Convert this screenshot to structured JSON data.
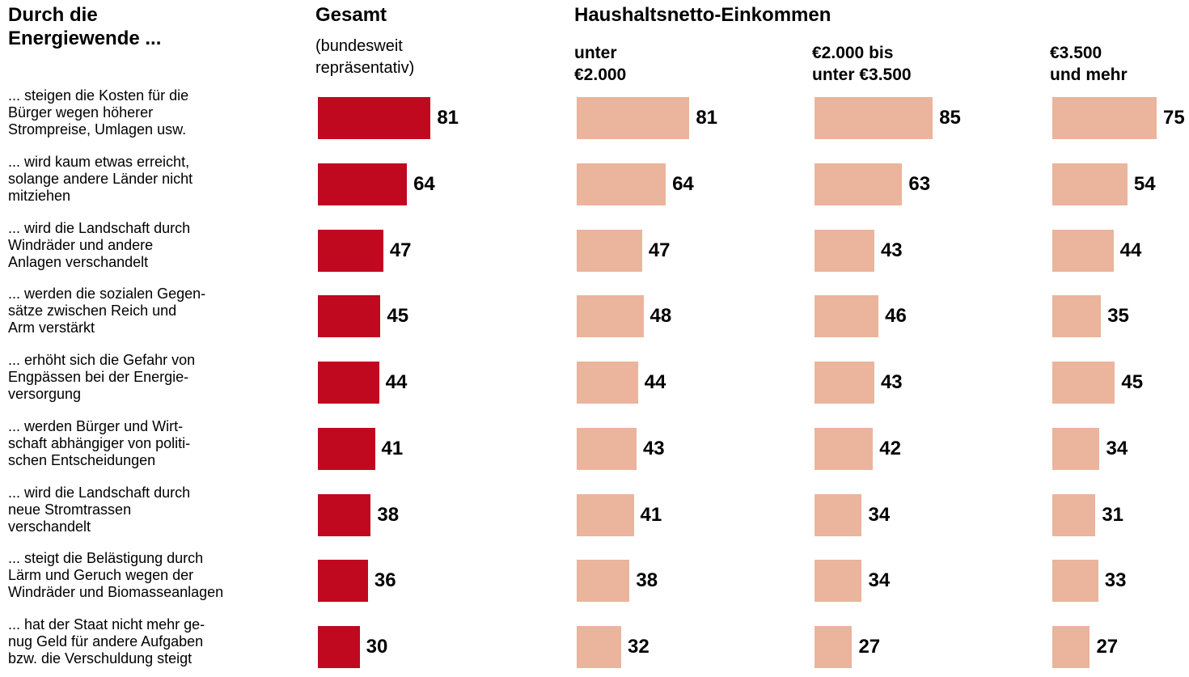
{
  "chart_data": {
    "type": "bar",
    "title": "Durch die\nEnergiewende ...",
    "group_title": "Haushaltsnetto-Einkommen",
    "categories": [
      "... steigen die Kosten für die\nBürger wegen höherer\nStrompreise, Umlagen usw.",
      "... wird kaum etwas erreicht,\nsolange andere Länder nicht\nmitziehen",
      "... wird die Landschaft durch\nWindräder und andere\nAnlagen verschandelt",
      "... werden die sozialen Gegen-\nsätze zwischen Reich und\nArm verstärkt",
      "... erhöht sich die Gefahr von\nEngpässen bei der Energie-\nversorgung",
      "... werden Bürger und Wirt-\nschaft abhängiger von politi-\nschen Entscheidungen",
      "... wird die Landschaft durch\nneue Stromtrassen\nverschandelt",
      "... steigt die Belästigung durch\nLärm und Geruch wegen der\n Windräder und Biomasseanlagen",
      "... hat der Staat nicht mehr ge-\nnug Geld für andere Aufgaben\nbzw. die Verschuldung steigt"
    ],
    "series": [
      {
        "name": "Gesamt",
        "subtitle": "(bundesweit\nrepräsentativ)",
        "color": "#c0081e",
        "values": [
          81,
          64,
          47,
          45,
          44,
          41,
          38,
          36,
          30
        ]
      },
      {
        "name": "unter\n€2.000",
        "color": "#ebb49c",
        "values": [
          81,
          64,
          47,
          48,
          44,
          43,
          41,
          38,
          32
        ]
      },
      {
        "name": "€2.000 bis\nunter €3.500",
        "color": "#ebb49c",
        "values": [
          85,
          63,
          43,
          46,
          43,
          42,
          34,
          34,
          27
        ]
      },
      {
        "name": "€3.500\nund mehr",
        "color": "#ebb49c",
        "values": [
          75,
          54,
          44,
          35,
          45,
          34,
          31,
          33,
          27
        ]
      }
    ]
  }
}
